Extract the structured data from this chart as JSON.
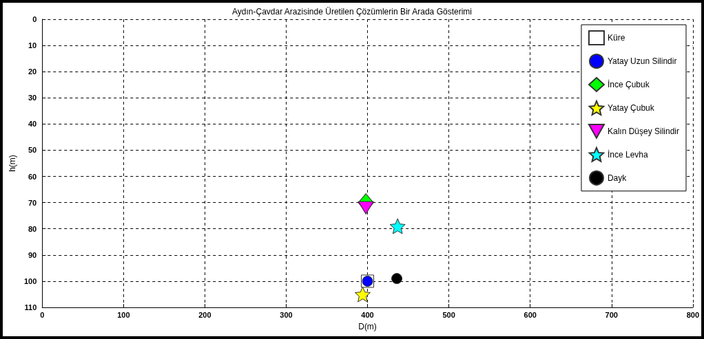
{
  "chart_data": {
    "type": "scatter",
    "title": "Aydın-Çavdar Arazisinde Üretilen Çözümlerin Bir Arada Gösterimi",
    "xlabel": "D(m)",
    "ylabel": "h(m)",
    "xlim": [
      0,
      800
    ],
    "xticks": [
      0,
      100,
      200,
      300,
      400,
      500,
      600,
      700,
      800
    ],
    "ylim": [
      110,
      0
    ],
    "yticks": [
      0,
      10,
      20,
      30,
      40,
      50,
      60,
      70,
      80,
      90,
      100,
      110
    ],
    "grid": true,
    "legend": "top right",
    "series": [
      {
        "name": "Küre",
        "color": "#ffffff",
        "marker": "square",
        "x": [
          400
        ],
        "values": [
          100
        ]
      },
      {
        "name": "Yatay Uzun Silindir",
        "color": "#0000ff",
        "marker": "circle",
        "x": [
          400
        ],
        "values": [
          100
        ]
      },
      {
        "name": "İnce Çubuk",
        "color": "#00ff00",
        "marker": "diamond",
        "x": [
          398
        ],
        "values": [
          70
        ]
      },
      {
        "name": "Yatay Çubuk",
        "color": "#ffff00",
        "marker": "star",
        "x": [
          394
        ],
        "values": [
          105
        ]
      },
      {
        "name": "Kalın Düşey Silindir",
        "color": "#ff00ff",
        "marker": "triangle",
        "x": [
          398
        ],
        "values": [
          72
        ]
      },
      {
        "name": "İnce Levha",
        "color": "#00ffff",
        "marker": "star",
        "x": [
          437
        ],
        "values": [
          79
        ]
      },
      {
        "name": "Dayk",
        "color": "#000000",
        "marker": "circle",
        "x": [
          436
        ],
        "values": [
          99
        ]
      }
    ]
  }
}
